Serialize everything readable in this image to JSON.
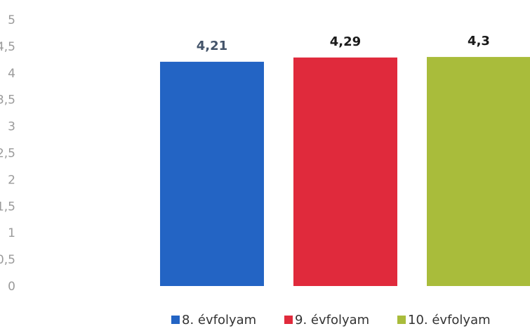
{
  "chart_data": {
    "type": "bar",
    "title": "",
    "xlabel": "",
    "ylabel": "",
    "ylim": [
      0,
      5
    ],
    "yticks": [
      "0",
      "0,5",
      "1",
      "1,5",
      "2",
      "2,5",
      "3",
      "3,5",
      "4",
      "4,5",
      "5"
    ],
    "grid": false,
    "legend_position": "bottom",
    "categories": [
      "8. évfolyam",
      "9. évfolyam",
      "10. évfolyam"
    ],
    "values": [
      4.21,
      4.29,
      4.3
    ],
    "data_labels": [
      "4,21",
      "4,29",
      "4,3"
    ],
    "colors": [
      "#2364c4",
      "#e02a3c",
      "#a9bc3b"
    ],
    "label_colors": [
      "#44546a",
      "#1a1a1a",
      "#1a1a1a"
    ]
  }
}
